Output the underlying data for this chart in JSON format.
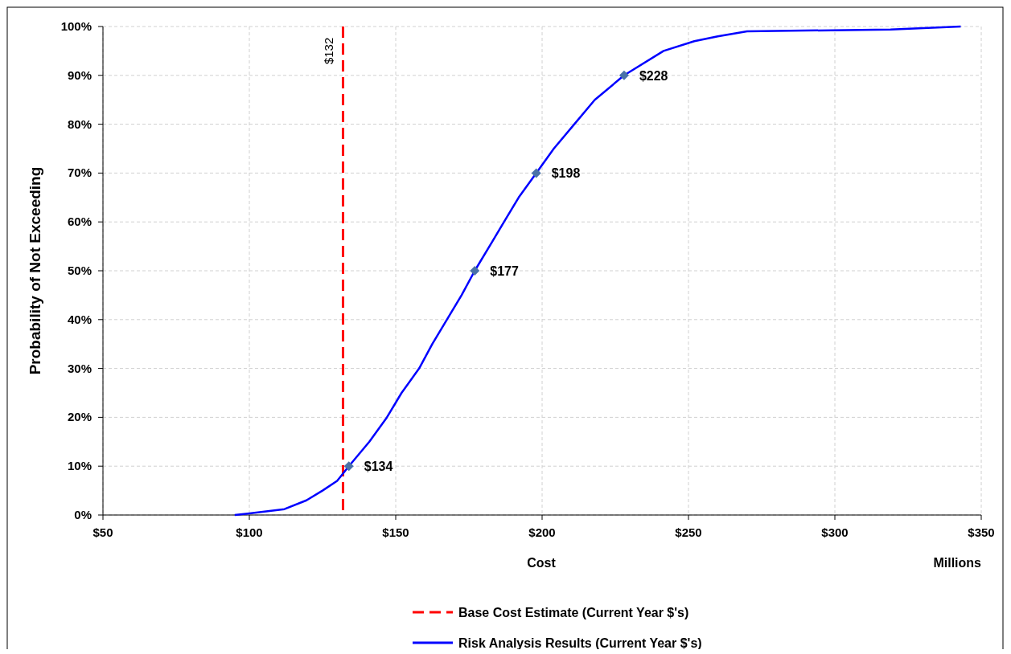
{
  "chart_data": {
    "type": "line",
    "ylabel": "Probability of Not Exceeding",
    "xlabel": "Cost",
    "xlim": [
      50,
      350
    ],
    "xticks": [
      {
        "value": 50,
        "label": "$50"
      },
      {
        "value": 100,
        "label": "$100"
      },
      {
        "value": 150,
        "label": "$150"
      },
      {
        "value": 200,
        "label": "$200"
      },
      {
        "value": 250,
        "label": "$250"
      },
      {
        "value": 300,
        "label": "$300"
      },
      {
        "value": 350,
        "label": "$350"
      }
    ],
    "ylim": [
      0,
      100
    ],
    "yticks": [
      {
        "value": 0,
        "label": "0%"
      },
      {
        "value": 10,
        "label": "10%"
      },
      {
        "value": 20,
        "label": "20%"
      },
      {
        "value": 30,
        "label": "30%"
      },
      {
        "value": 40,
        "label": "40%"
      },
      {
        "value": 50,
        "label": "50%"
      },
      {
        "value": 60,
        "label": "60%"
      },
      {
        "value": 70,
        "label": "70%"
      },
      {
        "value": 80,
        "label": "80%"
      },
      {
        "value": 90,
        "label": "90%"
      },
      {
        "value": 100,
        "label": "100%"
      }
    ],
    "grid": true,
    "legend": "bottom",
    "line_style": "solid",
    "series": [
      {
        "name": "Risk Analysis Results (Current Year $'s)",
        "color": "#0000ff",
        "marker": "none",
        "x": [
          95,
          99.5,
          112,
          119.5,
          125,
          130,
          134,
          141,
          147,
          152,
          158,
          162.5,
          172.5,
          177,
          183,
          187,
          192,
          198,
          204,
          211,
          218,
          228,
          241.5,
          252,
          260,
          270,
          319,
          343
        ],
        "values": [
          0,
          0.3,
          1.2,
          3,
          5,
          7,
          10,
          15,
          20,
          25,
          30,
          35,
          45,
          50,
          56,
          60,
          65,
          70,
          75,
          80,
          85,
          90,
          95,
          97,
          98,
          99,
          99.4,
          100
        ]
      },
      {
        "type": "scatter",
        "color": "#4a72a8",
        "marker": "diamond",
        "x": [
          134,
          177,
          198,
          228
        ],
        "values": [
          10,
          50,
          70,
          90
        ]
      }
    ],
    "ref_lines": [
      {
        "axis": "x",
        "value": 132,
        "label": "Base Cost Estimate (Current Year $'s)",
        "color": "#ff0000",
        "line_style": "dashed"
      }
    ],
    "annotations": [
      {
        "text": "$132",
        "x": 132,
        "y": 95
      },
      {
        "text": "$134",
        "x": 134,
        "y": 10
      },
      {
        "text": "$177",
        "x": 177,
        "y": 50
      },
      {
        "text": "$198",
        "x": 198,
        "y": 70
      },
      {
        "text": "$228",
        "x": 228,
        "y": 90
      },
      "Millions"
    ]
  }
}
